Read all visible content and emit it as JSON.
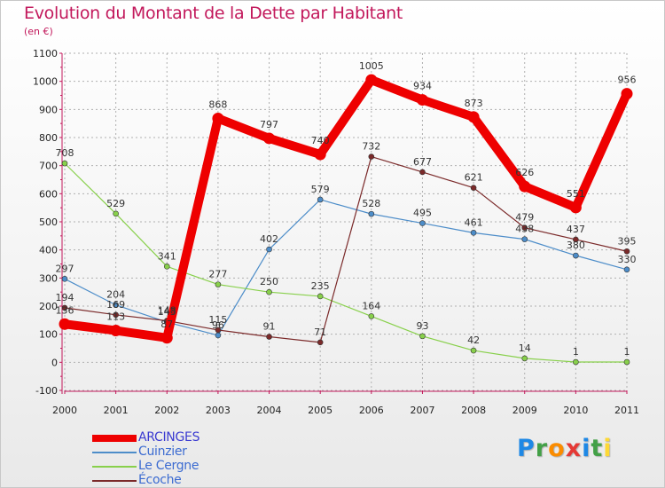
{
  "title": "Evolution du Montant de la Dette par Habitant",
  "subtitle": "(en €)",
  "logo": {
    "letters": [
      "P",
      "r",
      "o",
      "x",
      "i",
      "t",
      "i"
    ],
    "colors": [
      "#1e88e5",
      "#43a047",
      "#fb8c00",
      "#e53935",
      "#1e88e5",
      "#43a047",
      "#fdd835"
    ]
  },
  "chart_data": {
    "type": "line",
    "title": "Evolution du Montant de la Dette par Habitant",
    "subtitle": "(en €)",
    "x": [
      "2000",
      "2001",
      "2002",
      "2003",
      "2004",
      "2005",
      "2006",
      "2007",
      "2008",
      "2009",
      "2010",
      "2011"
    ],
    "ylim": [
      -100,
      1100
    ],
    "yticks": [
      "-100",
      "0",
      "100",
      "200",
      "300",
      "400",
      "500",
      "600",
      "700",
      "800",
      "900",
      "1000",
      "1100"
    ],
    "grid": "horizontal dashed",
    "legend_position": "bottom-left",
    "series": [
      {
        "name": "ARCINGES",
        "color": "#ee0000",
        "values": [
          136,
          113,
          87,
          868,
          797,
          740,
          1005,
          934,
          873,
          626,
          551,
          956
        ],
        "labels": [
          "136",
          "113",
          "87",
          "868",
          "797",
          "740",
          "1005",
          "934",
          "873",
          "626",
          "551",
          "956"
        ]
      },
      {
        "name": "Cuinzier",
        "color": "#4d8dc9",
        "values": [
          297,
          204,
          143,
          96,
          402,
          579,
          528,
          495,
          461,
          438,
          380,
          330
        ],
        "labels": [
          "297",
          "204",
          "143",
          "96",
          "402",
          "579",
          "528",
          "495",
          "461",
          "438",
          "380",
          "330"
        ]
      },
      {
        "name": "Le Cergne",
        "color": "#88d04b",
        "values": [
          708,
          529,
          341,
          277,
          250,
          235,
          164,
          93,
          42,
          14,
          1,
          1
        ],
        "labels": [
          "708",
          "529",
          "341",
          "277",
          "250",
          "235",
          "164",
          "93",
          "42",
          "14",
          "1",
          "1"
        ]
      },
      {
        "name": "Écoche",
        "color": "#7b2a2a",
        "values": [
          194,
          169,
          148,
          115,
          91,
          71,
          732,
          677,
          621,
          479,
          437,
          395
        ],
        "labels": [
          "194",
          "169",
          "148",
          "115",
          "91",
          "71",
          "732",
          "677",
          "621",
          "479",
          "437",
          "395"
        ]
      }
    ]
  }
}
